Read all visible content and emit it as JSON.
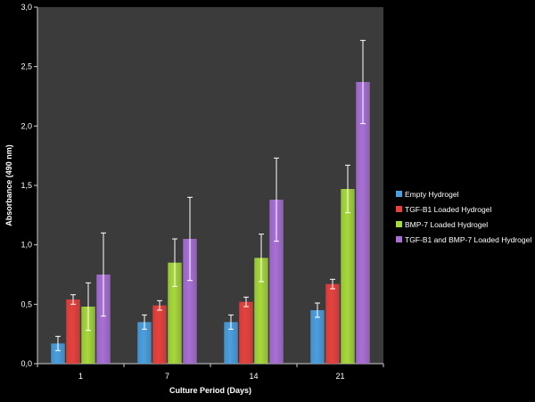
{
  "chart_data": {
    "type": "bar",
    "xlabel": "Culture Period (Days)",
    "ylabel": "Absorbance (490 nm)",
    "categories": [
      "1",
      "7",
      "14",
      "21"
    ],
    "ylim": [
      0,
      3.0
    ],
    "yticks": [
      "0,0",
      "0,5",
      "1,0",
      "1,5",
      "2,0",
      "2,5",
      "3,0"
    ],
    "grid": false,
    "legend_position": "right",
    "series": [
      {
        "name": "Empty Hydrogel",
        "color": "#4a9fe0",
        "values": [
          0.17,
          0.35,
          0.35,
          0.45
        ],
        "errors": [
          0.06,
          0.06,
          0.06,
          0.06
        ]
      },
      {
        "name": "TGF-B1 Loaded Hydrogel",
        "color": "#e8403c",
        "values": [
          0.54,
          0.49,
          0.52,
          0.67
        ],
        "errors": [
          0.04,
          0.04,
          0.04,
          0.04
        ]
      },
      {
        "name": "BMP-7 Loaded Hydrogel",
        "color": "#a6d93a",
        "values": [
          0.48,
          0.85,
          0.89,
          1.47
        ],
        "errors": [
          0.2,
          0.2,
          0.2,
          0.2
        ]
      },
      {
        "name": "TGF-B1 and BMP-7 Loaded Hydrogel",
        "color": "#a86fd6",
        "values": [
          0.75,
          1.05,
          1.38,
          2.37
        ],
        "errors": [
          0.35,
          0.35,
          0.35,
          0.35
        ]
      }
    ]
  }
}
